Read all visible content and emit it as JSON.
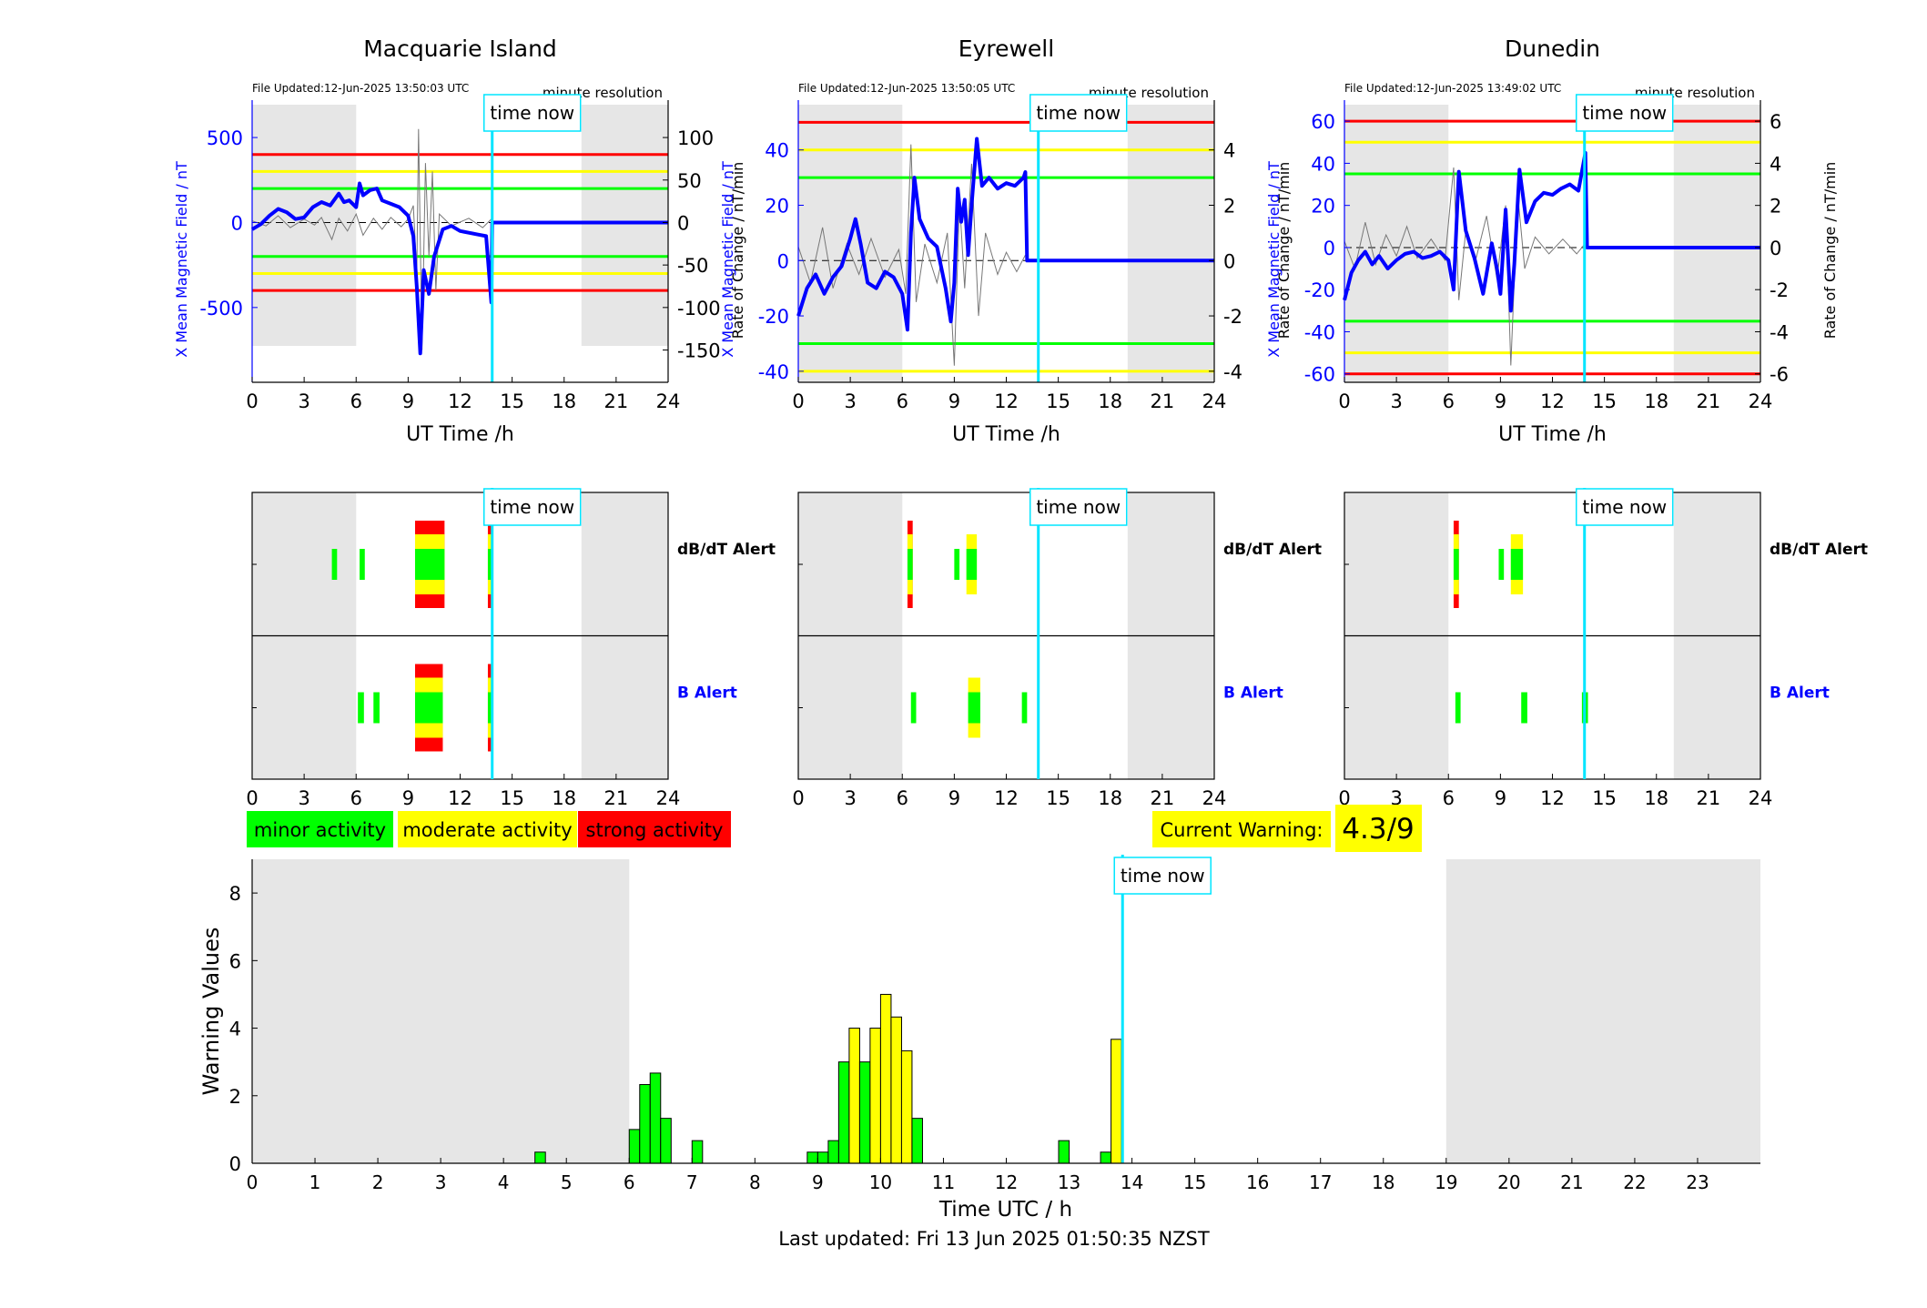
{
  "stations": [
    {
      "title": "Macquarie Island",
      "file_updated": "File Updated:12-Jun-2025 13:50:03 UTC",
      "resolution": "minute resolution",
      "left_ylabel": "X Mean Magnetic Field / nT",
      "right_ylabel": "Rate of Change / nT/min",
      "xlabel": "UT Time /h",
      "left_ticks": [
        -500,
        0,
        500
      ],
      "right_ticks": [
        -150,
        -100,
        -50,
        0,
        50,
        100
      ],
      "left_ylim": [
        -940,
        720
      ],
      "thresholds": [
        {
          "value": 400,
          "color": "#ff0000"
        },
        {
          "value": 300,
          "color": "#ffff00"
        },
        {
          "value": 200,
          "color": "#00ff00"
        },
        {
          "value": -200,
          "color": "#00ff00"
        },
        {
          "value": -300,
          "color": "#ffff00"
        },
        {
          "value": -400,
          "color": "#ff0000"
        }
      ],
      "field_trace": [
        [
          0,
          -40
        ],
        [
          0.5,
          -10
        ],
        [
          1,
          40
        ],
        [
          1.5,
          80
        ],
        [
          2,
          60
        ],
        [
          2.5,
          20
        ],
        [
          3,
          30
        ],
        [
          3.5,
          90
        ],
        [
          4,
          120
        ],
        [
          4.5,
          100
        ],
        [
          5,
          170
        ],
        [
          5.3,
          120
        ],
        [
          5.6,
          130
        ],
        [
          6,
          90
        ],
        [
          6.2,
          230
        ],
        [
          6.4,
          160
        ],
        [
          6.8,
          190
        ],
        [
          7.2,
          200
        ],
        [
          7.5,
          130
        ],
        [
          8,
          110
        ],
        [
          8.5,
          90
        ],
        [
          9,
          40
        ],
        [
          9.3,
          -80
        ],
        [
          9.5,
          -380
        ],
        [
          9.7,
          -770
        ],
        [
          9.9,
          -280
        ],
        [
          10.2,
          -420
        ],
        [
          10.5,
          -200
        ],
        [
          11,
          -40
        ],
        [
          11.5,
          -20
        ],
        [
          12,
          -50
        ],
        [
          12.5,
          -60
        ],
        [
          13,
          -70
        ],
        [
          13.5,
          -80
        ],
        [
          13.8,
          -470
        ],
        [
          13.85,
          0
        ],
        [
          24,
          0
        ]
      ],
      "roc_trace": [
        [
          0,
          2
        ],
        [
          0.8,
          -4
        ],
        [
          1.5,
          8
        ],
        [
          2.2,
          -6
        ],
        [
          3,
          4
        ],
        [
          3.6,
          -3
        ],
        [
          4,
          6
        ],
        [
          4.6,
          -20
        ],
        [
          5,
          5
        ],
        [
          5.5,
          -10
        ],
        [
          6,
          10
        ],
        [
          6.4,
          -15
        ],
        [
          7,
          5
        ],
        [
          7.5,
          -8
        ],
        [
          8,
          6
        ],
        [
          8.6,
          -5
        ],
        [
          9,
          4
        ],
        [
          9.3,
          20
        ],
        [
          9.5,
          -60
        ],
        [
          9.6,
          110
        ],
        [
          9.8,
          -150
        ],
        [
          10,
          70
        ],
        [
          10.2,
          -40
        ],
        [
          10.4,
          60
        ],
        [
          10.6,
          -80
        ],
        [
          10.8,
          10
        ],
        [
          11.5,
          -4
        ],
        [
          12.5,
          5
        ],
        [
          13.3,
          -6
        ],
        [
          13.8,
          4
        ]
      ],
      "alerts": {
        "dbdt": [
          {
            "t": 4.6,
            "w": 0.3,
            "level": 1
          },
          {
            "t": 6.2,
            "w": 0.3,
            "level": 1
          },
          {
            "t": 9.4,
            "w": 1.7,
            "level": 3
          },
          {
            "t": 13.6,
            "w": 0.3,
            "level": 3
          }
        ],
        "b": [
          {
            "t": 6.1,
            "w": 0.35,
            "level": 1
          },
          {
            "t": 7.0,
            "w": 0.35,
            "level": 1
          },
          {
            "t": 9.4,
            "w": 1.6,
            "level": 3
          },
          {
            "t": 13.6,
            "w": 0.3,
            "level": 3
          }
        ]
      }
    },
    {
      "title": "Eyrewell",
      "file_updated": "File Updated:12-Jun-2025 13:50:05 UTC",
      "resolution": "minute resolution",
      "left_ylabel": "X Mean Magnetic Field / nT",
      "right_ylabel": "Rate of Change / nT/min",
      "xlabel": "UT Time /h",
      "left_ticks": [
        -40,
        -20,
        0,
        20,
        40
      ],
      "right_ticks": [
        -4,
        -2,
        0,
        2,
        4
      ],
      "left_ylim": [
        -44,
        58
      ],
      "thresholds": [
        {
          "value": 50,
          "color": "#ff0000"
        },
        {
          "value": 40,
          "color": "#ffff00"
        },
        {
          "value": 30,
          "color": "#00ff00"
        },
        {
          "value": -30,
          "color": "#00ff00"
        },
        {
          "value": -40,
          "color": "#ffff00"
        }
      ],
      "field_trace": [
        [
          0,
          -20
        ],
        [
          0.5,
          -10
        ],
        [
          1,
          -5
        ],
        [
          1.5,
          -12
        ],
        [
          2,
          -6
        ],
        [
          2.5,
          -2
        ],
        [
          3,
          8
        ],
        [
          3.3,
          15
        ],
        [
          3.6,
          6
        ],
        [
          4,
          -8
        ],
        [
          4.5,
          -10
        ],
        [
          5,
          -4
        ],
        [
          5.5,
          -6
        ],
        [
          6,
          -12
        ],
        [
          6.3,
          -25
        ],
        [
          6.5,
          10
        ],
        [
          6.7,
          30
        ],
        [
          7,
          15
        ],
        [
          7.5,
          8
        ],
        [
          8,
          5
        ],
        [
          8.5,
          -10
        ],
        [
          8.8,
          -22
        ],
        [
          9,
          -8
        ],
        [
          9.2,
          26
        ],
        [
          9.4,
          14
        ],
        [
          9.6,
          22
        ],
        [
          9.8,
          2
        ],
        [
          10,
          20
        ],
        [
          10.3,
          44
        ],
        [
          10.6,
          27
        ],
        [
          11,
          30
        ],
        [
          11.5,
          26
        ],
        [
          12,
          28
        ],
        [
          12.5,
          27
        ],
        [
          13,
          30
        ],
        [
          13.1,
          32
        ],
        [
          13.2,
          0
        ],
        [
          24,
          0
        ]
      ],
      "roc_trace": [
        [
          0,
          0.5
        ],
        [
          0.7,
          -0.8
        ],
        [
          1.4,
          1.2
        ],
        [
          2,
          -1
        ],
        [
          2.8,
          0.6
        ],
        [
          3.5,
          -0.5
        ],
        [
          4.2,
          0.8
        ],
        [
          5,
          -0.6
        ],
        [
          5.8,
          0.4
        ],
        [
          6.2,
          -1.2
        ],
        [
          6.5,
          4.2
        ],
        [
          6.8,
          -1.5
        ],
        [
          7.3,
          0.6
        ],
        [
          8,
          -0.8
        ],
        [
          8.6,
          1
        ],
        [
          9,
          -3.8
        ],
        [
          9.3,
          2.2
        ],
        [
          9.6,
          -1
        ],
        [
          10,
          3.5
        ],
        [
          10.4,
          -2
        ],
        [
          10.8,
          1
        ],
        [
          11.5,
          -0.5
        ],
        [
          12,
          0.3
        ],
        [
          12.6,
          -0.4
        ],
        [
          13.1,
          0.2
        ]
      ],
      "alerts": {
        "dbdt": [
          {
            "t": 6.3,
            "w": 0.3,
            "level": 3
          },
          {
            "t": 9.0,
            "w": 0.3,
            "level": 1
          },
          {
            "t": 9.7,
            "w": 0.6,
            "level": 2
          }
        ],
        "b": [
          {
            "t": 6.5,
            "w": 0.3,
            "level": 1
          },
          {
            "t": 9.8,
            "w": 0.7,
            "level": 2
          },
          {
            "t": 12.9,
            "w": 0.3,
            "level": 1
          }
        ]
      }
    },
    {
      "title": "Dunedin",
      "file_updated": "File Updated:12-Jun-2025 13:49:02 UTC",
      "resolution": "minute resolution",
      "left_ylabel": "X Mean Magnetic Field / nT",
      "right_ylabel": "Rate of Change / nT/min",
      "xlabel": "UT Time /h",
      "left_ticks": [
        -60,
        -40,
        -20,
        0,
        20,
        40,
        60
      ],
      "right_ticks": [
        -6,
        -4,
        -2,
        0,
        2,
        4,
        6
      ],
      "left_ylim": [
        -64,
        70
      ],
      "thresholds": [
        {
          "value": 60,
          "color": "#ff0000"
        },
        {
          "value": 50,
          "color": "#ffff00"
        },
        {
          "value": 35,
          "color": "#00ff00"
        },
        {
          "value": -35,
          "color": "#00ff00"
        },
        {
          "value": -50,
          "color": "#ffff00"
        },
        {
          "value": -60,
          "color": "#ff0000"
        }
      ],
      "field_trace": [
        [
          0,
          -25
        ],
        [
          0.4,
          -12
        ],
        [
          0.8,
          -6
        ],
        [
          1.2,
          -2
        ],
        [
          1.6,
          -8
        ],
        [
          2,
          -4
        ],
        [
          2.5,
          -10
        ],
        [
          3,
          -6
        ],
        [
          3.5,
          -3
        ],
        [
          4,
          -2
        ],
        [
          4.5,
          -5
        ],
        [
          5,
          -4
        ],
        [
          5.5,
          -2
        ],
        [
          6,
          -6
        ],
        [
          6.3,
          -20
        ],
        [
          6.6,
          36
        ],
        [
          7,
          8
        ],
        [
          7.5,
          -5
        ],
        [
          8,
          -22
        ],
        [
          8.5,
          2
        ],
        [
          8.8,
          -10
        ],
        [
          9,
          -22
        ],
        [
          9.3,
          18
        ],
        [
          9.6,
          -30
        ],
        [
          9.8,
          -8
        ],
        [
          10.1,
          37
        ],
        [
          10.5,
          12
        ],
        [
          11,
          22
        ],
        [
          11.5,
          26
        ],
        [
          12,
          25
        ],
        [
          12.5,
          28
        ],
        [
          13,
          30
        ],
        [
          13.5,
          27
        ],
        [
          13.9,
          45
        ],
        [
          14,
          0
        ],
        [
          24,
          0
        ]
      ],
      "roc_trace": [
        [
          0,
          0.3
        ],
        [
          0.6,
          -1
        ],
        [
          1.2,
          1.2
        ],
        [
          1.8,
          -0.8
        ],
        [
          2.4,
          0.6
        ],
        [
          3,
          -0.4
        ],
        [
          3.6,
          1
        ],
        [
          4.2,
          -0.5
        ],
        [
          5,
          0.4
        ],
        [
          5.8,
          -0.6
        ],
        [
          6.3,
          3.8
        ],
        [
          6.6,
          -2.5
        ],
        [
          7,
          0.8
        ],
        [
          7.6,
          -0.5
        ],
        [
          8.2,
          1.5
        ],
        [
          8.8,
          -1.5
        ],
        [
          9.3,
          2
        ],
        [
          9.6,
          -5.6
        ],
        [
          10,
          2.5
        ],
        [
          10.4,
          -1
        ],
        [
          11,
          0.5
        ],
        [
          11.8,
          -0.3
        ],
        [
          12.6,
          0.4
        ],
        [
          13.4,
          -0.3
        ],
        [
          13.9,
          0.2
        ]
      ],
      "alerts": {
        "dbdt": [
          {
            "t": 6.3,
            "w": 0.3,
            "level": 3
          },
          {
            "t": 8.9,
            "w": 0.3,
            "level": 1
          },
          {
            "t": 9.6,
            "w": 0.7,
            "level": 2
          }
        ],
        "b": [
          {
            "t": 6.4,
            "w": 0.3,
            "level": 1
          },
          {
            "t": 10.2,
            "w": 0.35,
            "level": 1
          },
          {
            "t": 13.7,
            "w": 0.35,
            "level": 1
          }
        ]
      }
    }
  ],
  "time_now_label": "time now",
  "time_now_hour": 13.85,
  "night_shading": [
    [
      0,
      6
    ],
    [
      19,
      24
    ]
  ],
  "alert_labels": {
    "dbdt": "dB/dT Alert",
    "b": "B Alert"
  },
  "x_ticks": [
    0,
    3,
    6,
    9,
    12,
    15,
    18,
    21,
    24
  ],
  "legend": {
    "minor": "minor activity",
    "moderate": "moderate activity",
    "strong": "strong activity"
  },
  "current_warning": {
    "label": "Current Warning:",
    "value": "4.3/9"
  },
  "colors": {
    "minor": "#00ff00",
    "moderate": "#ffff00",
    "strong": "#ff0000",
    "field": "#0000ff",
    "time_now": "#00e5ff",
    "shade": "#e6e6e6"
  },
  "chart_data": {
    "type": "bar",
    "ylabel": "Warning Values",
    "xlabel": "Time UTC / h",
    "xlim": [
      0,
      24
    ],
    "ylim": [
      0,
      9
    ],
    "y_ticks": [
      0,
      2,
      4,
      6,
      8
    ],
    "x_ticks": [
      0,
      1,
      2,
      3,
      4,
      5,
      6,
      7,
      8,
      9,
      10,
      11,
      12,
      13,
      14,
      15,
      16,
      17,
      18,
      19,
      20,
      21,
      22,
      23
    ],
    "bin_width_h": 0.167,
    "bars": [
      {
        "t": 4.5,
        "value": 0.33,
        "level": "minor"
      },
      {
        "t": 6.0,
        "value": 1.0,
        "level": "minor"
      },
      {
        "t": 6.167,
        "value": 2.33,
        "level": "minor"
      },
      {
        "t": 6.333,
        "value": 2.67,
        "level": "minor"
      },
      {
        "t": 6.5,
        "value": 1.33,
        "level": "minor"
      },
      {
        "t": 7.0,
        "value": 0.67,
        "level": "minor"
      },
      {
        "t": 8.833,
        "value": 0.33,
        "level": "minor"
      },
      {
        "t": 9.0,
        "value": 0.33,
        "level": "minor"
      },
      {
        "t": 9.167,
        "value": 0.67,
        "level": "minor"
      },
      {
        "t": 9.333,
        "value": 3.0,
        "level": "minor"
      },
      {
        "t": 9.5,
        "value": 4.0,
        "level": "moderate"
      },
      {
        "t": 9.667,
        "value": 3.0,
        "level": "minor"
      },
      {
        "t": 9.833,
        "value": 4.0,
        "level": "moderate"
      },
      {
        "t": 10.0,
        "value": 5.0,
        "level": "moderate"
      },
      {
        "t": 10.167,
        "value": 4.33,
        "level": "moderate"
      },
      {
        "t": 10.333,
        "value": 3.33,
        "level": "moderate"
      },
      {
        "t": 10.5,
        "value": 1.33,
        "level": "minor"
      },
      {
        "t": 12.833,
        "value": 0.67,
        "level": "minor"
      },
      {
        "t": 13.5,
        "value": 0.33,
        "level": "minor"
      },
      {
        "t": 13.667,
        "value": 3.67,
        "level": "moderate"
      }
    ],
    "footer": "Last updated: Fri 13 Jun 2025 01:50:35 NZST"
  }
}
